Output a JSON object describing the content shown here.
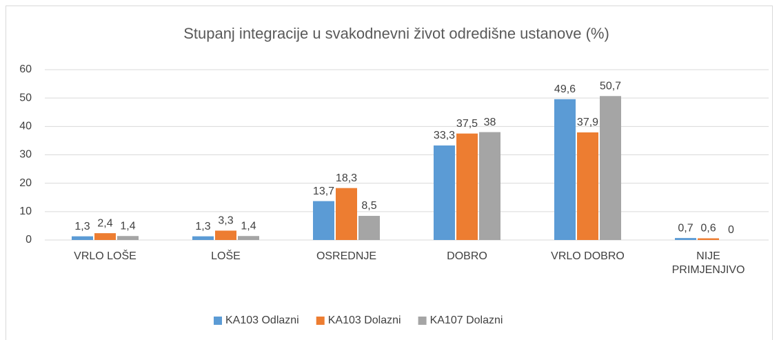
{
  "chart_data": {
    "type": "bar",
    "title": "Stupanj integracije u svakodnevni život odredišne ustanove (%)",
    "categories": [
      "VRLO LOŠE",
      "LOŠE",
      "OSREDNJE",
      "DOBRO",
      "VRLO DOBRO",
      "NIJE PRIMJENJIVO"
    ],
    "series": [
      {
        "name": "KA103 Odlazni",
        "color": "#5b9bd5",
        "values": [
          1.3,
          1.3,
          13.7,
          33.3,
          49.6,
          0.7
        ],
        "value_labels": [
          "1,3",
          "1,3",
          "13,7",
          "33,3",
          "49,6",
          "0,7"
        ]
      },
      {
        "name": "KA103 Dolazni",
        "color": "#ed7d31",
        "values": [
          2.4,
          3.3,
          18.3,
          37.5,
          37.9,
          0.6
        ],
        "value_labels": [
          "2,4",
          "3,3",
          "18,3",
          "37,5",
          "37,9",
          "0,6"
        ]
      },
      {
        "name": "KA107 Dolazni",
        "color": "#a5a5a5",
        "values": [
          1.4,
          1.4,
          8.5,
          38,
          50.7,
          0
        ],
        "value_labels": [
          "1,4",
          "1,4",
          "8,5",
          "38",
          "50,7",
          "0"
        ]
      }
    ],
    "ylim": [
      0,
      60
    ],
    "yticks": [
      0,
      10,
      20,
      30,
      40,
      50,
      60
    ],
    "grid": true,
    "legend": "bottom"
  }
}
